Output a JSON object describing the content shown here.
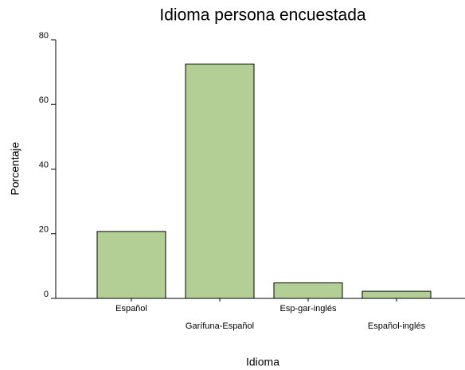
{
  "chart_data": {
    "type": "bar",
    "title": "Idioma persona encuestada",
    "x_label": "Idioma",
    "y_label": "Porcentaje",
    "categories": [
      "Español",
      "Garífuna-Español",
      "Esp-gar-inglés",
      "Español-inglés"
    ],
    "values": [
      20.7,
      72.5,
      4.8,
      2.2
    ],
    "color": "#b3cf95",
    "ylim": [
      0,
      80
    ],
    "yticks": [
      0,
      20,
      40,
      60,
      80
    ],
    "grid": false
  }
}
